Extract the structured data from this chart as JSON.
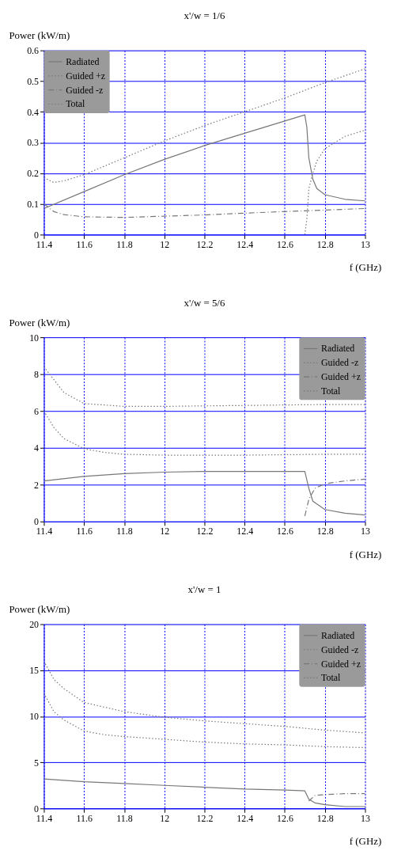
{
  "chart_data": [
    {
      "type": "line",
      "title": "x'/w = 1/6",
      "xlabel": "f (GHz)",
      "ylabel": "Power (kW/m)",
      "xlim": [
        11.4,
        13
      ],
      "xticks": [
        11.4,
        11.6,
        11.8,
        12,
        12.2,
        12.4,
        12.6,
        12.8,
        13
      ],
      "ylim": [
        0,
        0.6
      ],
      "yticks": [
        0,
        0.1,
        0.2,
        0.3,
        0.4,
        0.5,
        0.6
      ],
      "grid": true,
      "legend": "top left",
      "series": [
        {
          "name": "Radiated",
          "color": "#777777",
          "line_style": "solid",
          "x": [
            11.4,
            11.6,
            11.8,
            12.0,
            12.2,
            12.4,
            12.6,
            12.7,
            12.71,
            12.72,
            12.74,
            12.76,
            12.8,
            12.9,
            13.0
          ],
          "values": [
            0.085,
            0.14,
            0.195,
            0.245,
            0.29,
            0.33,
            0.37,
            0.39,
            0.35,
            0.25,
            0.18,
            0.15,
            0.13,
            0.115,
            0.11
          ]
        },
        {
          "name": "Guided +z",
          "color": "#777777",
          "line_style": "dotted",
          "x": [
            12.7,
            12.71,
            12.72,
            12.74,
            12.76,
            12.8,
            12.9,
            13.0
          ],
          "values": [
            0.0,
            0.05,
            0.15,
            0.2,
            0.24,
            0.28,
            0.32,
            0.34
          ]
        },
        {
          "name": "Guided -z",
          "color": "#777777",
          "line_style": "dashed",
          "x": [
            11.4,
            11.45,
            11.5,
            11.6,
            11.8,
            12.0,
            12.2,
            12.4,
            12.6,
            12.8,
            13.0
          ],
          "values": [
            0.1,
            0.075,
            0.065,
            0.058,
            0.056,
            0.06,
            0.064,
            0.07,
            0.075,
            0.08,
            0.085
          ]
        },
        {
          "name": "Total",
          "color": "#777777",
          "line_style": "dotted",
          "x": [
            11.4,
            11.45,
            11.5,
            11.6,
            11.8,
            12.0,
            12.2,
            12.4,
            12.6,
            12.8,
            13.0
          ],
          "values": [
            0.185,
            0.17,
            0.175,
            0.195,
            0.25,
            0.305,
            0.355,
            0.4,
            0.445,
            0.495,
            0.54
          ]
        }
      ]
    },
    {
      "type": "line",
      "title": "x'/w = 5/6",
      "xlabel": "f (GHz)",
      "ylabel": "Power (kW/m)",
      "xlim": [
        11.4,
        13
      ],
      "xticks": [
        11.4,
        11.6,
        11.8,
        12,
        12.2,
        12.4,
        12.6,
        12.8,
        13
      ],
      "ylim": [
        0,
        10
      ],
      "yticks": [
        0,
        2,
        4,
        6,
        8,
        10
      ],
      "grid": true,
      "legend": "top right",
      "series": [
        {
          "name": "Radiated",
          "color": "#777777",
          "line_style": "solid",
          "x": [
            11.4,
            11.6,
            11.8,
            12.0,
            12.2,
            12.4,
            12.6,
            12.7,
            12.72,
            12.74,
            12.8,
            12.9,
            13.0
          ],
          "values": [
            2.2,
            2.45,
            2.6,
            2.68,
            2.72,
            2.72,
            2.72,
            2.72,
            1.8,
            1.1,
            0.65,
            0.45,
            0.35
          ]
        },
        {
          "name": "Guided -z",
          "color": "#777777",
          "line_style": "dotted",
          "x": [
            11.4,
            11.45,
            11.5,
            11.6,
            11.7,
            11.8,
            12.0,
            12.4,
            12.8,
            13.0
          ],
          "values": [
            6.0,
            5.1,
            4.5,
            3.95,
            3.75,
            3.65,
            3.6,
            3.6,
            3.65,
            3.65
          ]
        },
        {
          "name": "Guided +z",
          "color": "#777777",
          "line_style": "dashed",
          "x": [
            12.7,
            12.72,
            12.75,
            12.8,
            12.9,
            13.0
          ],
          "values": [
            0.3,
            1.2,
            1.8,
            2.05,
            2.2,
            2.3
          ]
        },
        {
          "name": "Total",
          "color": "#777777",
          "line_style": "dotted",
          "x": [
            11.4,
            11.45,
            11.5,
            11.6,
            11.8,
            12.0,
            12.4,
            12.8,
            13.0
          ],
          "values": [
            8.4,
            7.7,
            7.0,
            6.4,
            6.25,
            6.25,
            6.3,
            6.35,
            6.35
          ]
        }
      ]
    },
    {
      "type": "line",
      "title": "x'/w = 1",
      "xlabel": "f (GHz)",
      "ylabel": "Power (kW/m)",
      "xlim": [
        11.4,
        13
      ],
      "xticks": [
        11.4,
        11.6,
        11.8,
        12,
        12.2,
        12.4,
        12.6,
        12.8,
        13
      ],
      "ylim": [
        0,
        20
      ],
      "yticks": [
        0,
        5,
        10,
        15,
        20
      ],
      "grid": true,
      "legend": "top right",
      "series": [
        {
          "name": "Radiated",
          "color": "#777777",
          "line_style": "solid",
          "x": [
            11.4,
            11.6,
            11.8,
            12.0,
            12.2,
            12.4,
            12.6,
            12.7,
            12.72,
            12.75,
            12.8,
            12.9,
            13.0
          ],
          "values": [
            3.2,
            2.9,
            2.7,
            2.5,
            2.3,
            2.1,
            2.0,
            1.9,
            1.0,
            0.6,
            0.4,
            0.2,
            0.2
          ]
        },
        {
          "name": "Guided -z",
          "color": "#777777",
          "line_style": "dotted",
          "x": [
            11.4,
            11.45,
            11.5,
            11.6,
            11.7,
            11.8,
            12.0,
            12.2,
            12.4,
            12.6,
            12.8,
            13.0
          ],
          "values": [
            12.5,
            10.5,
            9.6,
            8.4,
            8.0,
            7.8,
            7.5,
            7.2,
            7.0,
            6.9,
            6.7,
            6.6
          ]
        },
        {
          "name": "Guided +z",
          "color": "#777777",
          "line_style": "dashed",
          "x": [
            12.72,
            12.75,
            12.8,
            12.9,
            13.0
          ],
          "values": [
            0.8,
            1.4,
            1.5,
            1.6,
            1.6
          ]
        },
        {
          "name": "Total",
          "color": "#777777",
          "line_style": "dotted",
          "x": [
            11.4,
            11.45,
            11.5,
            11.6,
            11.8,
            12.0,
            12.2,
            12.4,
            12.6,
            12.8,
            13.0
          ],
          "values": [
            16.0,
            14.0,
            13.0,
            11.5,
            10.5,
            9.9,
            9.5,
            9.2,
            8.9,
            8.5,
            8.2
          ]
        }
      ]
    }
  ]
}
